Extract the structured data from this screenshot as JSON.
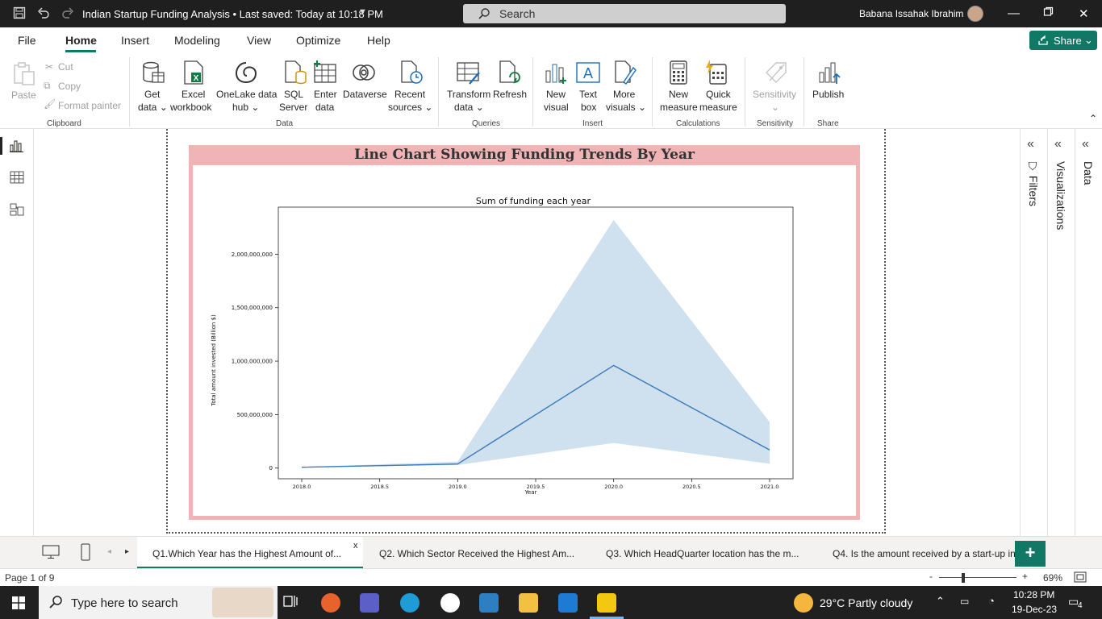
{
  "titlebar": {
    "title": "Indian Startup Funding Analysis • Last saved: Today at 10:18 PM",
    "search_placeholder": "Search",
    "user_name": "Babana Issahak Ibrahim"
  },
  "menu": {
    "items": [
      "File",
      "Home",
      "Insert",
      "Modeling",
      "View",
      "Optimize",
      "Help"
    ],
    "active": "Home",
    "share_label": "Share"
  },
  "ribbon": {
    "clipboard": {
      "paste": "Paste",
      "cut": "Cut",
      "copy": "Copy",
      "format_painter": "Format painter",
      "group": "Clipboard"
    },
    "data": {
      "get_data": [
        "Get",
        "data ⌄"
      ],
      "excel": [
        "Excel",
        "workbook"
      ],
      "onelake": [
        "OneLake data",
        "hub ⌄"
      ],
      "sql": [
        "SQL",
        "Server"
      ],
      "enter": [
        "Enter",
        "data"
      ],
      "dataverse": [
        "Dataverse",
        ""
      ],
      "recent": [
        "Recent",
        "sources ⌄"
      ],
      "group": "Data"
    },
    "queries": {
      "transform": [
        "Transform",
        "data ⌄"
      ],
      "refresh": [
        "Refresh",
        ""
      ],
      "group": "Queries"
    },
    "insert": {
      "new_visual": [
        "New",
        "visual"
      ],
      "text_box": [
        "Text",
        "box"
      ],
      "more_visuals": [
        "More",
        "visuals ⌄"
      ],
      "group": "Insert"
    },
    "calculations": {
      "new_measure": [
        "New",
        "measure"
      ],
      "quick_measure": [
        "Quick",
        "measure"
      ],
      "group": "Calculations"
    },
    "sensitivity": {
      "label": [
        "Sensitivity",
        "⌄"
      ],
      "group": "Sensitivity"
    },
    "share": {
      "publish": [
        "Publish",
        ""
      ],
      "group": "Share"
    }
  },
  "visual": {
    "title": "Line Chart Showing Funding Trends By Year"
  },
  "chart_data": {
    "type": "line",
    "title": "Sum of funding each year",
    "xlabel": "Year",
    "ylabel": "Total amount invested (Billion $)",
    "x": [
      2018.0,
      2019.0,
      2020.0,
      2021.0
    ],
    "series": [
      {
        "values": [
          8000000,
          38000000,
          960000000,
          170000000
        ]
      }
    ],
    "band_upper": [
      10000000,
      60000000,
      2320000000,
      430000000
    ],
    "band_lower": [
      6000000,
      28000000,
      235000000,
      40000000
    ],
    "xticks": [
      2018.0,
      2018.5,
      2019.0,
      2019.5,
      2020.0,
      2020.5,
      2021.0
    ],
    "xtick_labels": [
      "2018.0",
      "2018.5",
      "2019.0",
      "2019.5",
      "2020.0",
      "2020.5",
      "2021.0"
    ],
    "yticks": [
      0,
      500000000,
      1000000000,
      1500000000,
      2000000000
    ],
    "ytick_labels": [
      "0",
      "500,000,000",
      "1,000,000,000",
      "1,500,000,000",
      "2,000,000,000"
    ],
    "xlim": [
      2017.85,
      2021.15
    ],
    "ylim": [
      -100000000,
      2440000000
    ],
    "grid": false,
    "line_color": "#3a7ab8",
    "band_color": "#cfe0ee"
  },
  "panes": {
    "filters": "Filters",
    "visualizations": "Visualizations",
    "data": "Data"
  },
  "tabs": [
    "Q1.Which Year has the Highest Amount of...",
    "Q2. Which Sector Received the Highest Am...",
    "Q3. Which HeadQuarter location has the m...",
    "Q4. Is the amount received by a start-up in"
  ],
  "tab_close": "x",
  "add_tab": "+",
  "status": {
    "page": "Page 1 of 9",
    "zoom": "69%"
  },
  "taskbar": {
    "search_placeholder": "Type here to search",
    "weather": "29°C  Partly cloudy",
    "time": "10:28 PM",
    "date": "19-Dec-23",
    "notification_count": "4"
  },
  "colors": {
    "accent": "#117865",
    "visual_border": "#f0b3b6",
    "titlebar": "#1f1f1f",
    "taskbar": "#202020"
  }
}
